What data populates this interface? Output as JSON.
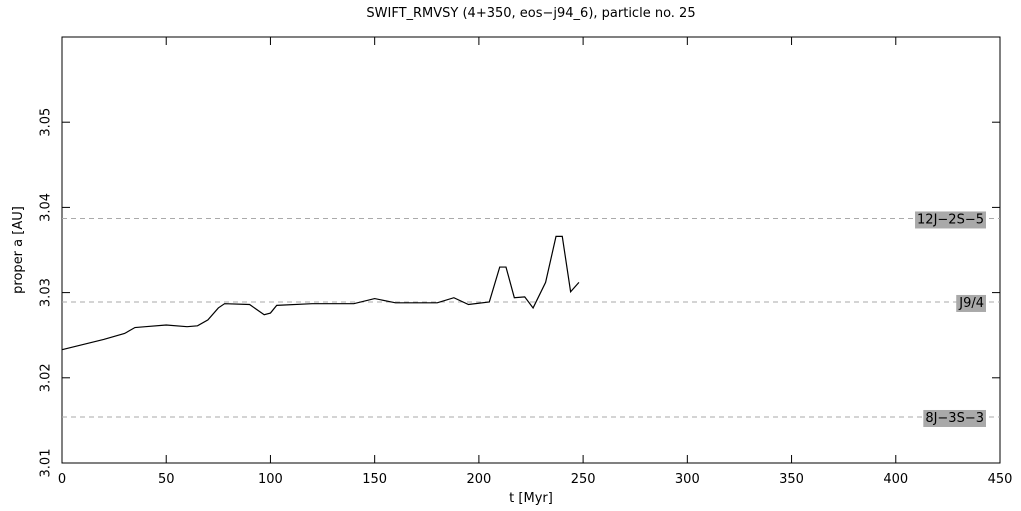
{
  "chart_data": {
    "type": "line",
    "title": "SWIFT_RMVSY (4+350, eos−j94_6), particle no. 25",
    "x_label": "t [Myr]",
    "y_label": "proper a [AU]",
    "xlim": [
      0,
      450
    ],
    "xticks": [
      0,
      50,
      100,
      150,
      200,
      250,
      300,
      350,
      400,
      450
    ],
    "ylim": [
      3.01,
      3.06
    ],
    "yticks": [
      3.01,
      3.02,
      3.03,
      3.04,
      3.05
    ],
    "resonances": [
      {
        "label": "12J−2S−5",
        "value": 3.0387
      },
      {
        "label": "J9/4",
        "value": 3.0289
      },
      {
        "label": "8J−3S−3",
        "value": 3.0154
      }
    ],
    "series": [
      {
        "color": "#000000",
        "x": [
          0,
          10,
          20,
          30,
          35,
          40,
          50,
          60,
          65,
          70,
          75,
          78,
          90,
          97,
          100,
          103,
          120,
          140,
          150,
          160,
          180,
          188,
          195,
          205,
          210,
          213,
          217,
          222,
          226,
          232,
          237,
          240,
          244,
          248
        ],
        "values": [
          3.0233,
          3.0239,
          3.0245,
          3.0252,
          3.0259,
          3.026,
          3.0262,
          3.026,
          3.0261,
          3.0268,
          3.0282,
          3.0287,
          3.0286,
          3.0274,
          3.0276,
          3.0285,
          3.0287,
          3.0287,
          3.0293,
          3.0288,
          3.0288,
          3.0294,
          3.0286,
          3.0289,
          3.033,
          3.033,
          3.0294,
          3.0295,
          3.0282,
          3.0312,
          3.0366,
          3.0366,
          3.0301,
          3.0312
        ]
      }
    ]
  }
}
